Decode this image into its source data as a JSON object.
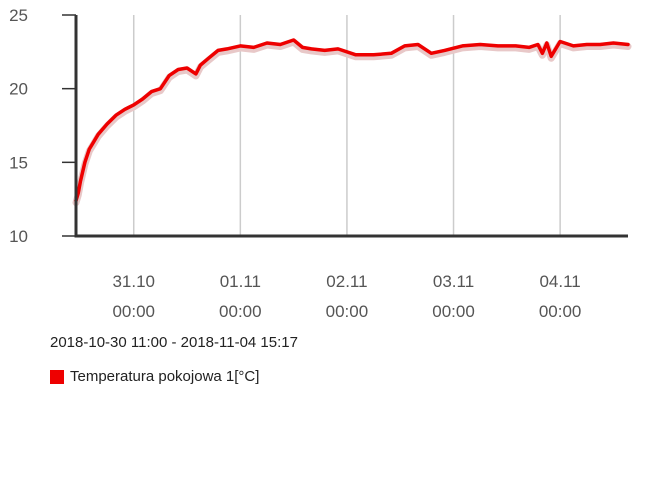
{
  "chart_data": {
    "type": "line",
    "title": "",
    "xlabel": "",
    "ylabel": "",
    "ylim": [
      10,
      25
    ],
    "yticks": [
      "10",
      "15",
      "20",
      "25"
    ],
    "xlim": [
      "2018-10-30 11:00",
      "2018-11-04 15:17"
    ],
    "xticks": [
      {
        "date": "31.10",
        "time": "00:00",
        "at": "2018-10-31 00:00"
      },
      {
        "date": "01.11",
        "time": "00:00",
        "at": "2018-11-01 00:00"
      },
      {
        "date": "02.11",
        "time": "00:00",
        "at": "2018-11-02 00:00"
      },
      {
        "date": "03.11",
        "time": "00:00",
        "at": "2018-11-03 00:00"
      },
      {
        "date": "04.11",
        "time": "00:00",
        "at": "2018-11-04 00:00"
      }
    ],
    "grid": "vertical",
    "series": [
      {
        "name": "Temperatura pokojowa 1[°C]",
        "color": "#ee0000",
        "x": [
          "2018-10-30 11:00",
          "2018-10-30 11:30",
          "2018-10-30 12:00",
          "2018-10-30 13:00",
          "2018-10-30 14:00",
          "2018-10-30 15:00",
          "2018-10-30 16:00",
          "2018-10-30 18:00",
          "2018-10-30 20:00",
          "2018-10-30 22:00",
          "2018-10-31 00:00",
          "2018-10-31 02:00",
          "2018-10-31 04:00",
          "2018-10-31 06:00",
          "2018-10-31 08:00",
          "2018-10-31 10:00",
          "2018-10-31 12:00",
          "2018-10-31 14:00",
          "2018-10-31 15:00",
          "2018-10-31 17:00",
          "2018-10-31 19:00",
          "2018-10-31 21:00",
          "2018-11-01 00:00",
          "2018-11-01 03:00",
          "2018-11-01 06:00",
          "2018-11-01 09:00",
          "2018-11-01 12:00",
          "2018-11-01 14:00",
          "2018-11-01 16:00",
          "2018-11-01 19:00",
          "2018-11-01 22:00",
          "2018-11-02 02:00",
          "2018-11-02 06:00",
          "2018-11-02 10:00",
          "2018-11-02 13:00",
          "2018-11-02 16:00",
          "2018-11-02 19:00",
          "2018-11-02 22:00",
          "2018-11-03 02:00",
          "2018-11-03 06:00",
          "2018-11-03 10:00",
          "2018-11-03 14:00",
          "2018-11-03 17:00",
          "2018-11-03 19:00",
          "2018-11-03 20:00",
          "2018-11-03 21:00",
          "2018-11-03 22:00",
          "2018-11-04 00:00",
          "2018-11-04 03:00",
          "2018-11-04 06:00",
          "2018-11-04 09:00",
          "2018-11-04 12:00",
          "2018-11-04 15:17"
        ],
        "y": [
          12.4,
          12.9,
          13.7,
          15.0,
          15.9,
          16.4,
          16.9,
          17.6,
          18.2,
          18.6,
          18.9,
          19.3,
          19.8,
          20.0,
          20.9,
          21.3,
          21.4,
          21.0,
          21.6,
          22.1,
          22.6,
          22.7,
          22.9,
          22.8,
          23.1,
          23.0,
          23.3,
          22.8,
          22.7,
          22.6,
          22.7,
          22.3,
          22.3,
          22.4,
          22.9,
          23.0,
          22.4,
          22.6,
          22.9,
          23.0,
          22.9,
          22.9,
          22.8,
          23.0,
          22.4,
          23.1,
          22.2,
          23.2,
          22.9,
          23.0,
          23.0,
          23.1,
          23.0
        ]
      }
    ]
  },
  "footer": {
    "range_text": "2018-10-30 11:00 - 2018-11-04 15:17"
  },
  "legend": {
    "items": [
      {
        "label": "Temperatura pokojowa 1[°C]",
        "color": "#ee0000"
      }
    ]
  }
}
